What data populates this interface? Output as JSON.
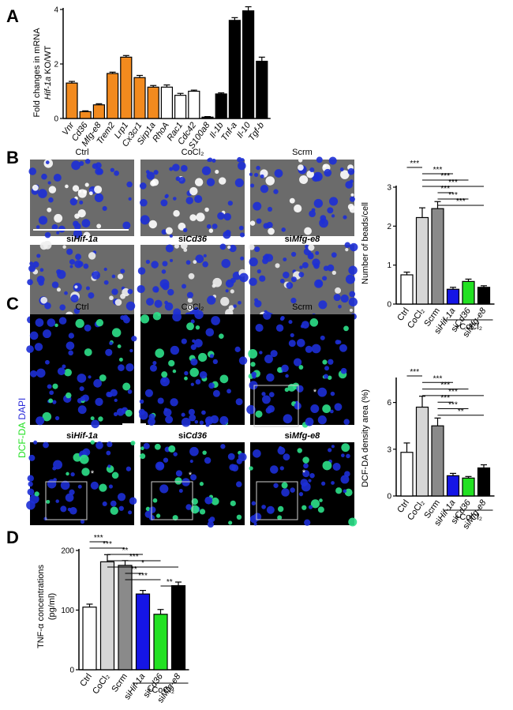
{
  "panels": {
    "A": "A",
    "B": "B",
    "C": "C",
    "D": "D"
  },
  "colors": {
    "orange": "#f28a1e",
    "white": "#ffffff",
    "black": "#000000",
    "lightgray": "#d6d6d6",
    "gray": "#8a8a8a",
    "blue": "#1515e6",
    "green": "#22e122",
    "micro_blue": "#1d2fd6",
    "micro_green": "#2ee08a",
    "micro_bg": "#6b6b6b"
  },
  "chart_data": [
    {
      "id": "A",
      "type": "bar",
      "ylabel_line1": "Fold changes in mRNA",
      "ylabel_line2_italic": "Hif-1a",
      "ylabel_line2_rest": " KO/WT",
      "ylim": [
        0,
        4
      ],
      "yticks": [
        "0",
        "2",
        "4"
      ],
      "categories": [
        "Vnr",
        "Cd36",
        "Mfg-e8",
        "Trem2",
        "Lrp1",
        "Cx3cr1",
        "Sirp1a",
        "RhoA",
        "Rac1",
        "Cdc42",
        "S100a8",
        "Il-1b",
        "Tnf-a",
        "Il-10",
        "Tgf-b"
      ],
      "values": [
        1.3,
        0.25,
        0.5,
        1.65,
        2.25,
        1.5,
        1.15,
        1.15,
        0.85,
        1.0,
        0.05,
        0.9,
        3.6,
        3.95,
        2.1
      ],
      "errors": [
        0.06,
        0.03,
        0.04,
        0.05,
        0.06,
        0.08,
        0.06,
        0.08,
        0.07,
        0.04,
        0.02,
        0.04,
        0.1,
        0.15,
        0.15
      ],
      "bar_colors": [
        "orange",
        "orange",
        "orange",
        "orange",
        "orange",
        "orange",
        "orange",
        "white",
        "white",
        "white",
        "black",
        "black",
        "black",
        "black",
        "black"
      ]
    },
    {
      "id": "B",
      "type": "bar",
      "ylabel": "Number of beads/cell",
      "ylim": [
        0,
        3
      ],
      "yticks": [
        "0",
        "1",
        "2",
        "3"
      ],
      "categories": [
        "Ctrl",
        "CoCl₂",
        "Scrm",
        "siHif-1a",
        "siCd36",
        "siMfg-e8"
      ],
      "values": [
        0.75,
        2.22,
        2.45,
        0.38,
        0.58,
        0.43
      ],
      "errors": [
        0.07,
        0.25,
        0.18,
        0.05,
        0.06,
        0.04
      ],
      "bar_colors": [
        "white",
        "lightgray",
        "gray",
        "blue",
        "green",
        "black"
      ],
      "group_label": "+CoCl₂",
      "significance": [
        {
          "from": 0,
          "to": 1,
          "label": "***"
        },
        {
          "from": 1,
          "to": 3,
          "label": "***"
        },
        {
          "from": 1,
          "to": 4,
          "label": "***"
        },
        {
          "from": 1,
          "to": 5,
          "label": "***"
        },
        {
          "from": 2,
          "to": 3,
          "label": "***"
        },
        {
          "from": 2,
          "to": 4,
          "label": "***"
        },
        {
          "from": 2,
          "to": 5,
          "label": "***"
        }
      ]
    },
    {
      "id": "C",
      "type": "bar",
      "ylabel": "DCF-DA density area (%)",
      "ylim": [
        0,
        7.5
      ],
      "yticks": [
        "0",
        "3",
        "6"
      ],
      "categories": [
        "Ctrl",
        "CoCl₂",
        "Scrm",
        "siHif-1a",
        "siCd36",
        "siMfg-e8"
      ],
      "values": [
        2.8,
        5.7,
        4.5,
        1.3,
        1.15,
        1.8
      ],
      "errors": [
        0.6,
        0.7,
        0.5,
        0.15,
        0.1,
        0.2
      ],
      "bar_colors": [
        "white",
        "lightgray",
        "gray",
        "blue",
        "green",
        "black"
      ],
      "group_label": "+CoCl₂",
      "significance": [
        {
          "from": 0,
          "to": 1,
          "label": "***"
        },
        {
          "from": 1,
          "to": 3,
          "label": "***"
        },
        {
          "from": 1,
          "to": 4,
          "label": "***"
        },
        {
          "from": 1,
          "to": 5,
          "label": "***"
        },
        {
          "from": 2,
          "to": 3,
          "label": "***"
        },
        {
          "from": 2,
          "to": 4,
          "label": "***"
        },
        {
          "from": 2,
          "to": 5,
          "label": "**"
        }
      ]
    },
    {
      "id": "D",
      "type": "bar",
      "ylabel_line1": "TNF-α concentrations",
      "ylabel_line2": "(pg/ml)",
      "ylim": [
        0,
        200
      ],
      "yticks": [
        "0",
        "100",
        "200"
      ],
      "categories": [
        "Ctrl",
        "CoCl₂",
        "Scrm",
        "siHif-1a",
        "siCd36",
        "siMfg-e8"
      ],
      "values": [
        105,
        181,
        175,
        127,
        93,
        141
      ],
      "errors": [
        5,
        12,
        8,
        6,
        8,
        6
      ],
      "bar_colors": [
        "white",
        "lightgray",
        "gray",
        "blue",
        "green",
        "black"
      ],
      "group_label": "+CoCl₂",
      "significance": [
        {
          "from": 0,
          "to": 1,
          "label": "***"
        },
        {
          "from": 0,
          "to": 2,
          "label": "***"
        },
        {
          "from": 1,
          "to": 3,
          "label": "**"
        },
        {
          "from": 1,
          "to": 4,
          "label": "***"
        },
        {
          "from": 1,
          "to": 5,
          "label": "*"
        },
        {
          "from": 2,
          "to": 3,
          "label": "**"
        },
        {
          "from": 2,
          "to": 4,
          "label": "***"
        },
        {
          "from": 4,
          "to": 5,
          "label": "**"
        }
      ]
    }
  ],
  "micrographs": {
    "B": {
      "top": [
        "Ctrl",
        "CoCl₂",
        "Scrm"
      ],
      "bottom_prefix": [
        "si",
        "si",
        "si"
      ],
      "bottom_gene": [
        "Hif-1a",
        "Cd36",
        "Mfg-e8"
      ]
    },
    "C": {
      "top": [
        "Ctrl",
        "CoCl₂",
        "Scrm"
      ],
      "bottom_prefix": [
        "si",
        "si",
        "si"
      ],
      "bottom_gene": [
        "Hif-1a",
        "Cd36",
        "Mfg-e8"
      ],
      "side_label_green": "DCF-DA",
      "side_label_blue": "DAPI",
      "asterisk": "*"
    }
  }
}
